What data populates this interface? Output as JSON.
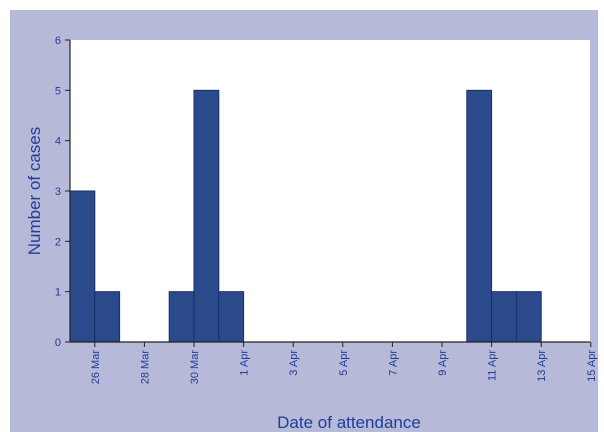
{
  "chart_data": {
    "type": "bar",
    "title": "",
    "xlabel": "Date of attendance",
    "ylabel": "Number of cases",
    "ylim": [
      0,
      6
    ],
    "yticks": [
      0,
      1,
      2,
      3,
      4,
      5,
      6
    ],
    "x_tick_labels": [
      "26 Mar",
      "28 Mar",
      "30 Mar",
      "1 Apr",
      "3 Apr",
      "5 Apr",
      "7 Apr",
      "9 Apr",
      "11 Apr",
      "13 Apr",
      "15 Apr"
    ],
    "categories": [
      "25 Mar",
      "26 Mar",
      "27 Mar",
      "28 Mar",
      "29 Mar",
      "30 Mar",
      "31 Mar",
      "1 Apr",
      "2 Apr",
      "3 Apr",
      "4 Apr",
      "5 Apr",
      "6 Apr",
      "7 Apr",
      "8 Apr",
      "9 Apr",
      "10 Apr",
      "11 Apr",
      "12 Apr",
      "13 Apr"
    ],
    "values": [
      3,
      1,
      0,
      0,
      1,
      5,
      1,
      0,
      0,
      0,
      0,
      0,
      0,
      0,
      0,
      0,
      5,
      1,
      1,
      0
    ],
    "grid": false,
    "colors": {
      "bar_fill": "#2a4a8c",
      "bar_stroke": "#1a2f66",
      "background": "#b7b9d8",
      "plot_area": "#ffffff",
      "axis_text": "#1f3d99"
    }
  }
}
